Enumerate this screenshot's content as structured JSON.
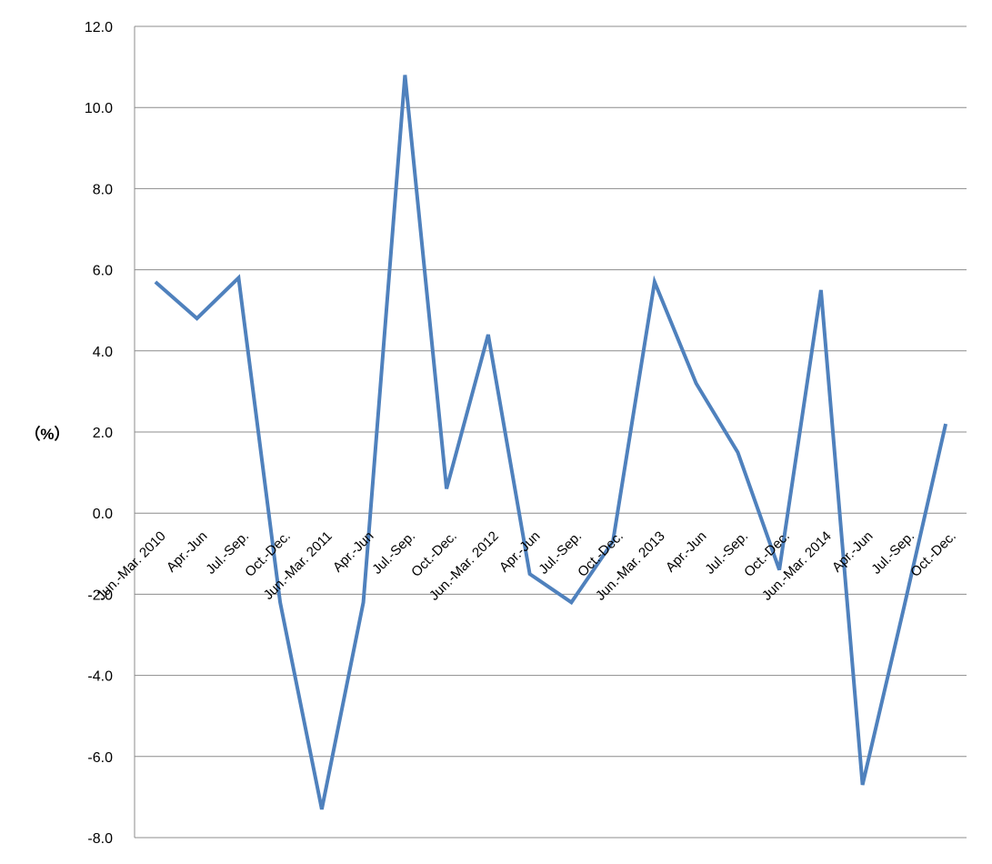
{
  "chart_data": {
    "type": "line",
    "title": "",
    "xlabel": "",
    "ylabel": "（%）",
    "ylim": [
      -8,
      12
    ],
    "yticks": [
      "12.0",
      "10.0",
      "8.0",
      "6.0",
      "4.0",
      "2.0",
      "0.0",
      "-2.0",
      "-4.0",
      "-6.0",
      "-8.0"
    ],
    "ytick_values": [
      12,
      10,
      8,
      6,
      4,
      2,
      0,
      -2,
      -4,
      -6,
      -8
    ],
    "grid": true,
    "legend": "none",
    "categories": [
      "Jun.-Mar. 2010",
      "Apr.-Jun",
      "Jul.-Sep.",
      "Oct.-Dec.",
      "Jun.-Mar. 2011",
      "Apr.-Jun",
      "Jul.-Sep.",
      "Oct.-Dec.",
      "Jun.-Mar. 2012",
      "Apr.-Jun",
      "Jul.-Sep.",
      "Oct.-Dec.",
      "Jun.-Mar. 2013",
      "Apr.-Jun",
      "Jul.-Sep.",
      "Oct.-Dec.",
      "Jun.-Mar. 2014",
      "Apr.-Jun",
      "Jul.-Sep.",
      "Oct.-Dec."
    ],
    "series": [
      {
        "values": [
          5.7,
          4.8,
          5.8,
          -2.2,
          -7.3,
          -2.2,
          10.8,
          0.6,
          4.4,
          -1.5,
          -2.2,
          -0.7,
          5.7,
          3.2,
          1.5,
          -1.4,
          5.5,
          -6.7,
          -2.3,
          2.2
        ],
        "color": "#4f81bd"
      }
    ],
    "colors": {
      "grid": "#8c8c8c",
      "axis": "#8c8c8c"
    }
  }
}
